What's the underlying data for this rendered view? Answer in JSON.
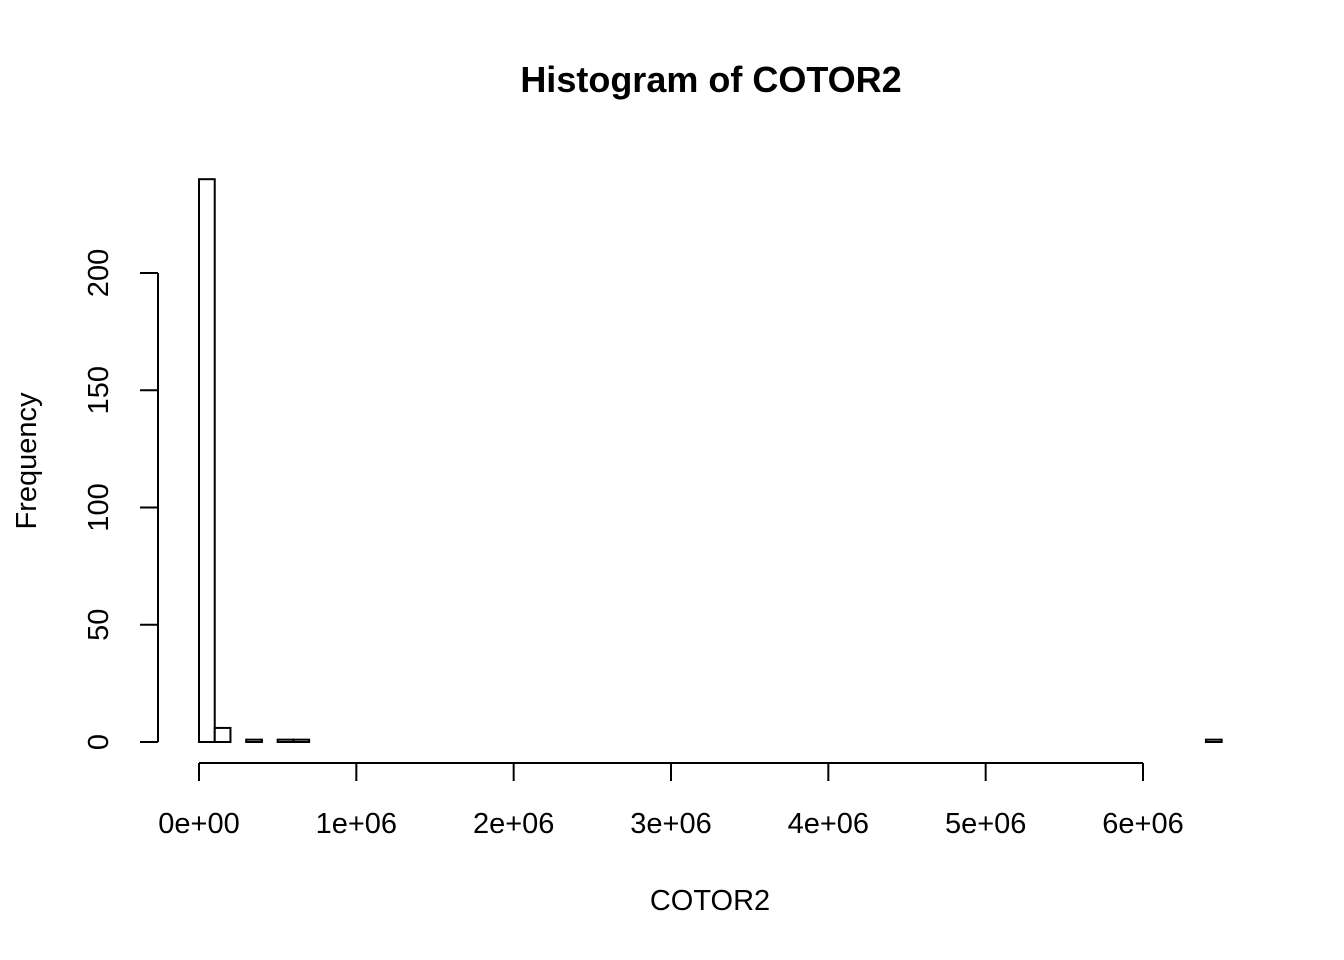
{
  "chart_data": {
    "type": "bar",
    "title": "Histogram of COTOR2",
    "xlabel": "COTOR2",
    "ylabel": "Frequency",
    "bin_width": 100000,
    "xlim": [
      0,
      6500000
    ],
    "ylim": [
      0,
      240
    ],
    "x_ticks": [
      {
        "value": 0,
        "label": "0e+00"
      },
      {
        "value": 1000000,
        "label": "1e+06"
      },
      {
        "value": 2000000,
        "label": "2e+06"
      },
      {
        "value": 3000000,
        "label": "3e+06"
      },
      {
        "value": 4000000,
        "label": "4e+06"
      },
      {
        "value": 5000000,
        "label": "5e+06"
      },
      {
        "value": 6000000,
        "label": "6e+06"
      }
    ],
    "y_ticks": [
      {
        "value": 0,
        "label": "0"
      },
      {
        "value": 50,
        "label": "50"
      },
      {
        "value": 100,
        "label": "100"
      },
      {
        "value": 150,
        "label": "150"
      },
      {
        "value": 200,
        "label": "200"
      }
    ],
    "counts": [
      240,
      6,
      0,
      1,
      0,
      1,
      1,
      0,
      0,
      0,
      0,
      0,
      0,
      0,
      0,
      0,
      0,
      0,
      0,
      0,
      0,
      0,
      0,
      0,
      0,
      0,
      0,
      0,
      0,
      0,
      0,
      0,
      0,
      0,
      0,
      0,
      0,
      0,
      0,
      0,
      0,
      0,
      0,
      0,
      0,
      0,
      0,
      0,
      0,
      0,
      0,
      0,
      0,
      0,
      0,
      0,
      0,
      0,
      0,
      0,
      0,
      0,
      0,
      0,
      1
    ],
    "grid": false,
    "legend": "none"
  }
}
